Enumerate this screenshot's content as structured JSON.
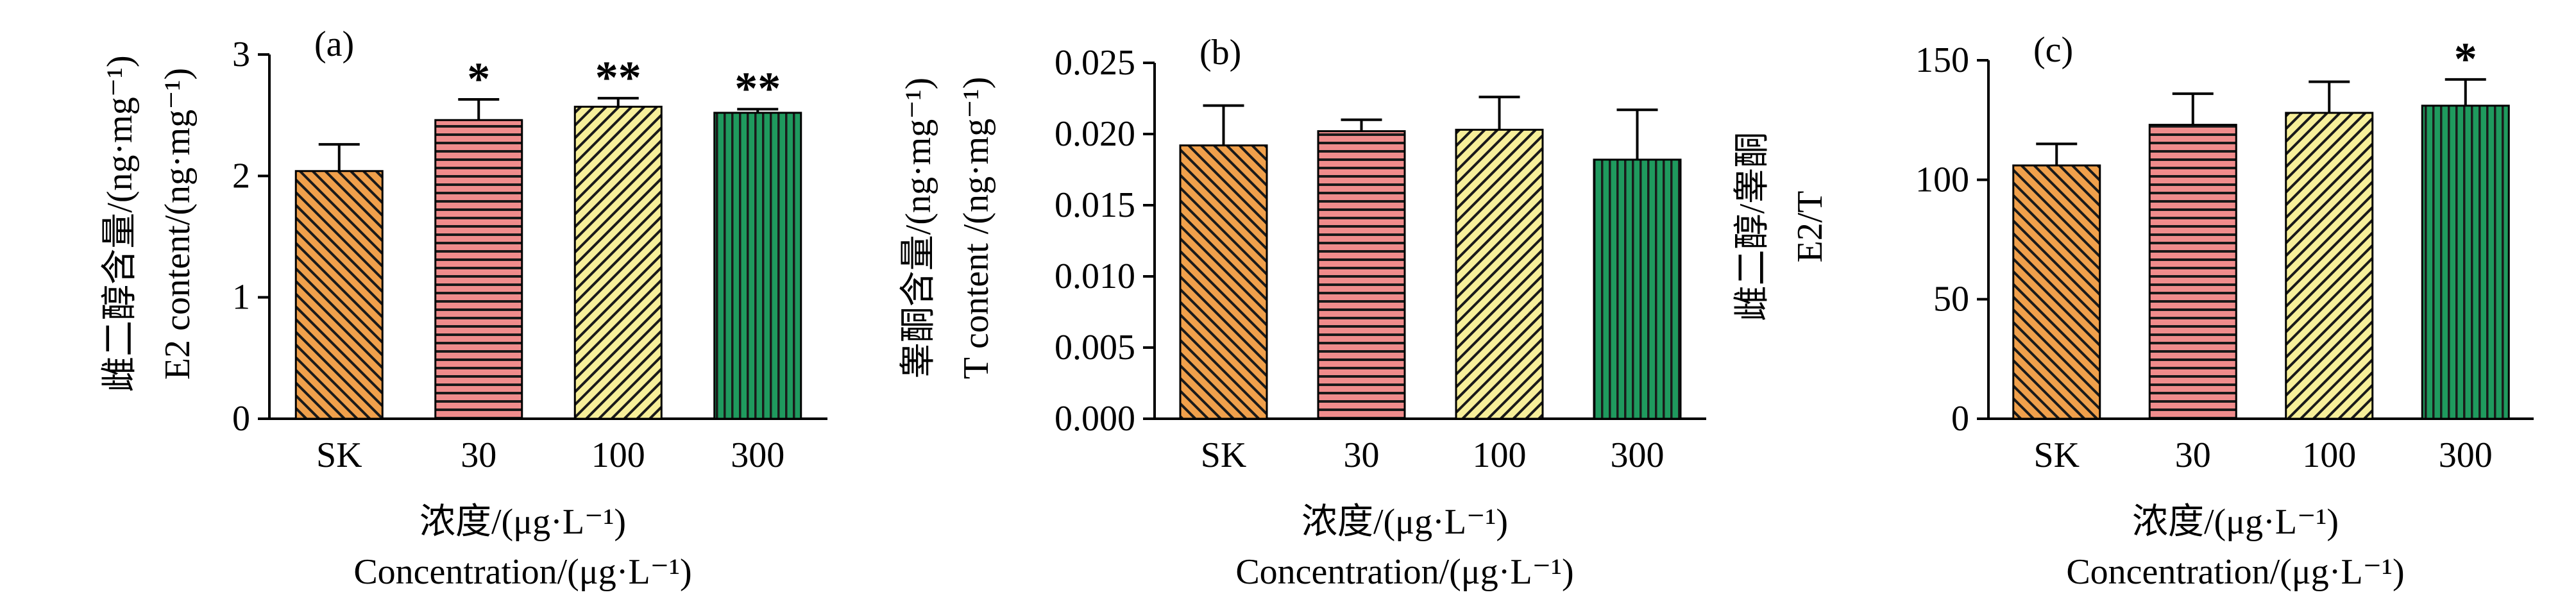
{
  "xlabel_cn": "浓度/(μg·L⁻¹)",
  "xlabel_en": "Concentration/(μg·L⁻¹)",
  "chart_data": [
    {
      "type": "bar",
      "panel_label": "(a)",
      "categories": [
        "SK",
        "30",
        "100",
        "300"
      ],
      "values": [
        2.04,
        2.46,
        2.57,
        2.52
      ],
      "errors": [
        0.22,
        0.17,
        0.07,
        0.03
      ],
      "significance": [
        "",
        "*",
        "**",
        "**"
      ],
      "ylabel_cn": "雌二醇含量/(ng·mg⁻¹)",
      "ylabel_en": "E2 content/(ng·mg⁻¹)",
      "ylim": [
        0,
        3
      ],
      "yticks": [
        "0",
        "1",
        "2",
        "3"
      ],
      "xlabel_cn": "浓度/(μg·L⁻¹)",
      "xlabel_en": "Concentration/(μg·L⁻¹)",
      "grid": false
    },
    {
      "type": "bar",
      "panel_label": "(b)",
      "categories": [
        "SK",
        "30",
        "100",
        "300"
      ],
      "values": [
        0.0192,
        0.0202,
        0.0203,
        0.0182
      ],
      "errors": [
        0.0028,
        0.0008,
        0.0023,
        0.0035
      ],
      "significance": [
        "",
        "",
        "",
        ""
      ],
      "ylabel_cn": "睾酮含量/(ng·mg⁻¹)",
      "ylabel_en": "T content /(ng·mg⁻¹)",
      "ylim": [
        0,
        0.025
      ],
      "yticks": [
        "0.000",
        "0.005",
        "0.010",
        "0.015",
        "0.020",
        "0.025"
      ],
      "xlabel_cn": "浓度/(μg·L⁻¹)",
      "xlabel_en": "Concentration/(μg·L⁻¹)",
      "grid": false
    },
    {
      "type": "bar",
      "panel_label": "(c)",
      "categories": [
        "SK",
        "30",
        "100",
        "300"
      ],
      "values": [
        106,
        123,
        128,
        131
      ],
      "errors": [
        9,
        13,
        13,
        11
      ],
      "significance": [
        "",
        "",
        "",
        "*"
      ],
      "ylabel_cn": "雌二醇/睾酮",
      "ylabel_en": "E2/T",
      "ylim": [
        0,
        150
      ],
      "yticks": [
        "0",
        "50",
        "100",
        "150"
      ],
      "xlabel_cn": "浓度/(μg·L⁻¹)",
      "xlabel_en": "Concentration/(μg·L⁻¹)",
      "grid": false
    }
  ],
  "bar_colors": [
    "#f0a04b",
    "#f08c8c",
    "#f7ef9a",
    "#1f9a5e"
  ],
  "bar_patterns": [
    "diagonal-back",
    "horizontal",
    "diagonal-forward",
    "vertical"
  ]
}
